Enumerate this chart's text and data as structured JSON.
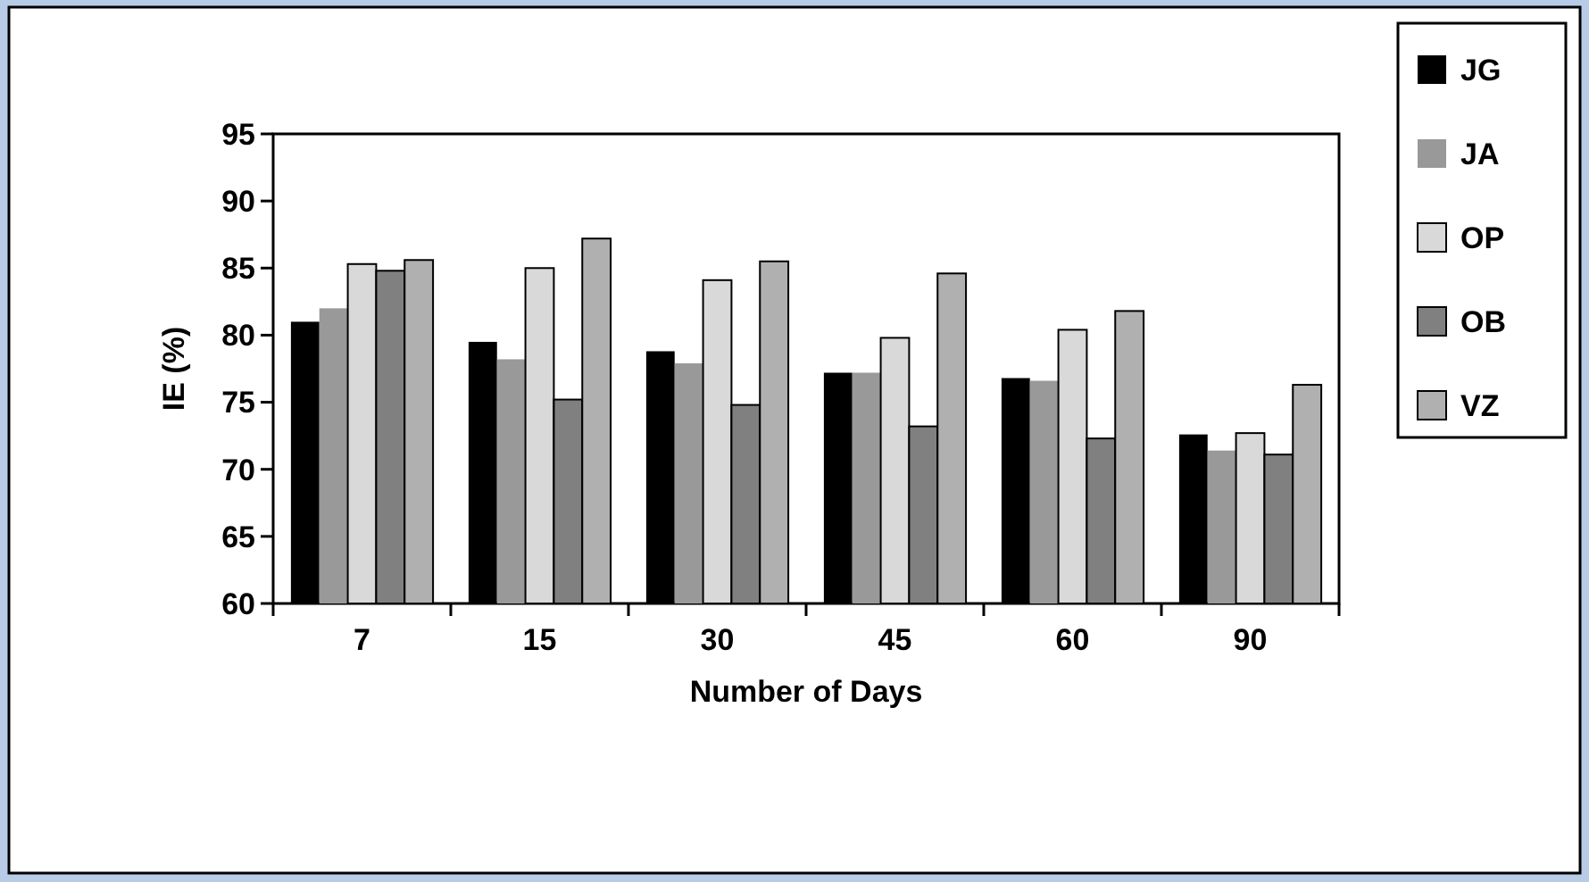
{
  "chart_data": {
    "type": "bar",
    "xlabel": "Number of Days",
    "ylabel": "IE (%)",
    "categories": [
      "7",
      "15",
      "30",
      "45",
      "60",
      "90"
    ],
    "series": [
      {
        "name": "JG",
        "color": "#000000",
        "values": [
          81,
          79.5,
          78.8,
          77.2,
          76.8,
          72.6
        ]
      },
      {
        "name": "JA",
        "color": "#999999",
        "values": [
          82,
          78.2,
          77.9,
          77.2,
          76.6,
          71.4
        ]
      },
      {
        "name": "OP",
        "color": "#d9d9d9",
        "values": [
          85.3,
          85,
          84.1,
          79.8,
          80.4,
          72.7
        ]
      },
      {
        "name": "OB",
        "color": "#808080",
        "values": [
          84.8,
          75.2,
          74.8,
          73.2,
          72.3,
          71.1
        ]
      },
      {
        "name": "VZ",
        "color": "#b0b0b0",
        "values": [
          85.6,
          87.2,
          85.5,
          84.6,
          81.8,
          76.3
        ]
      }
    ],
    "ylim": [
      60,
      95
    ],
    "yticks": [
      60,
      65,
      70,
      75,
      80,
      85,
      90,
      95
    ],
    "grid": false,
    "legend": "top right"
  }
}
